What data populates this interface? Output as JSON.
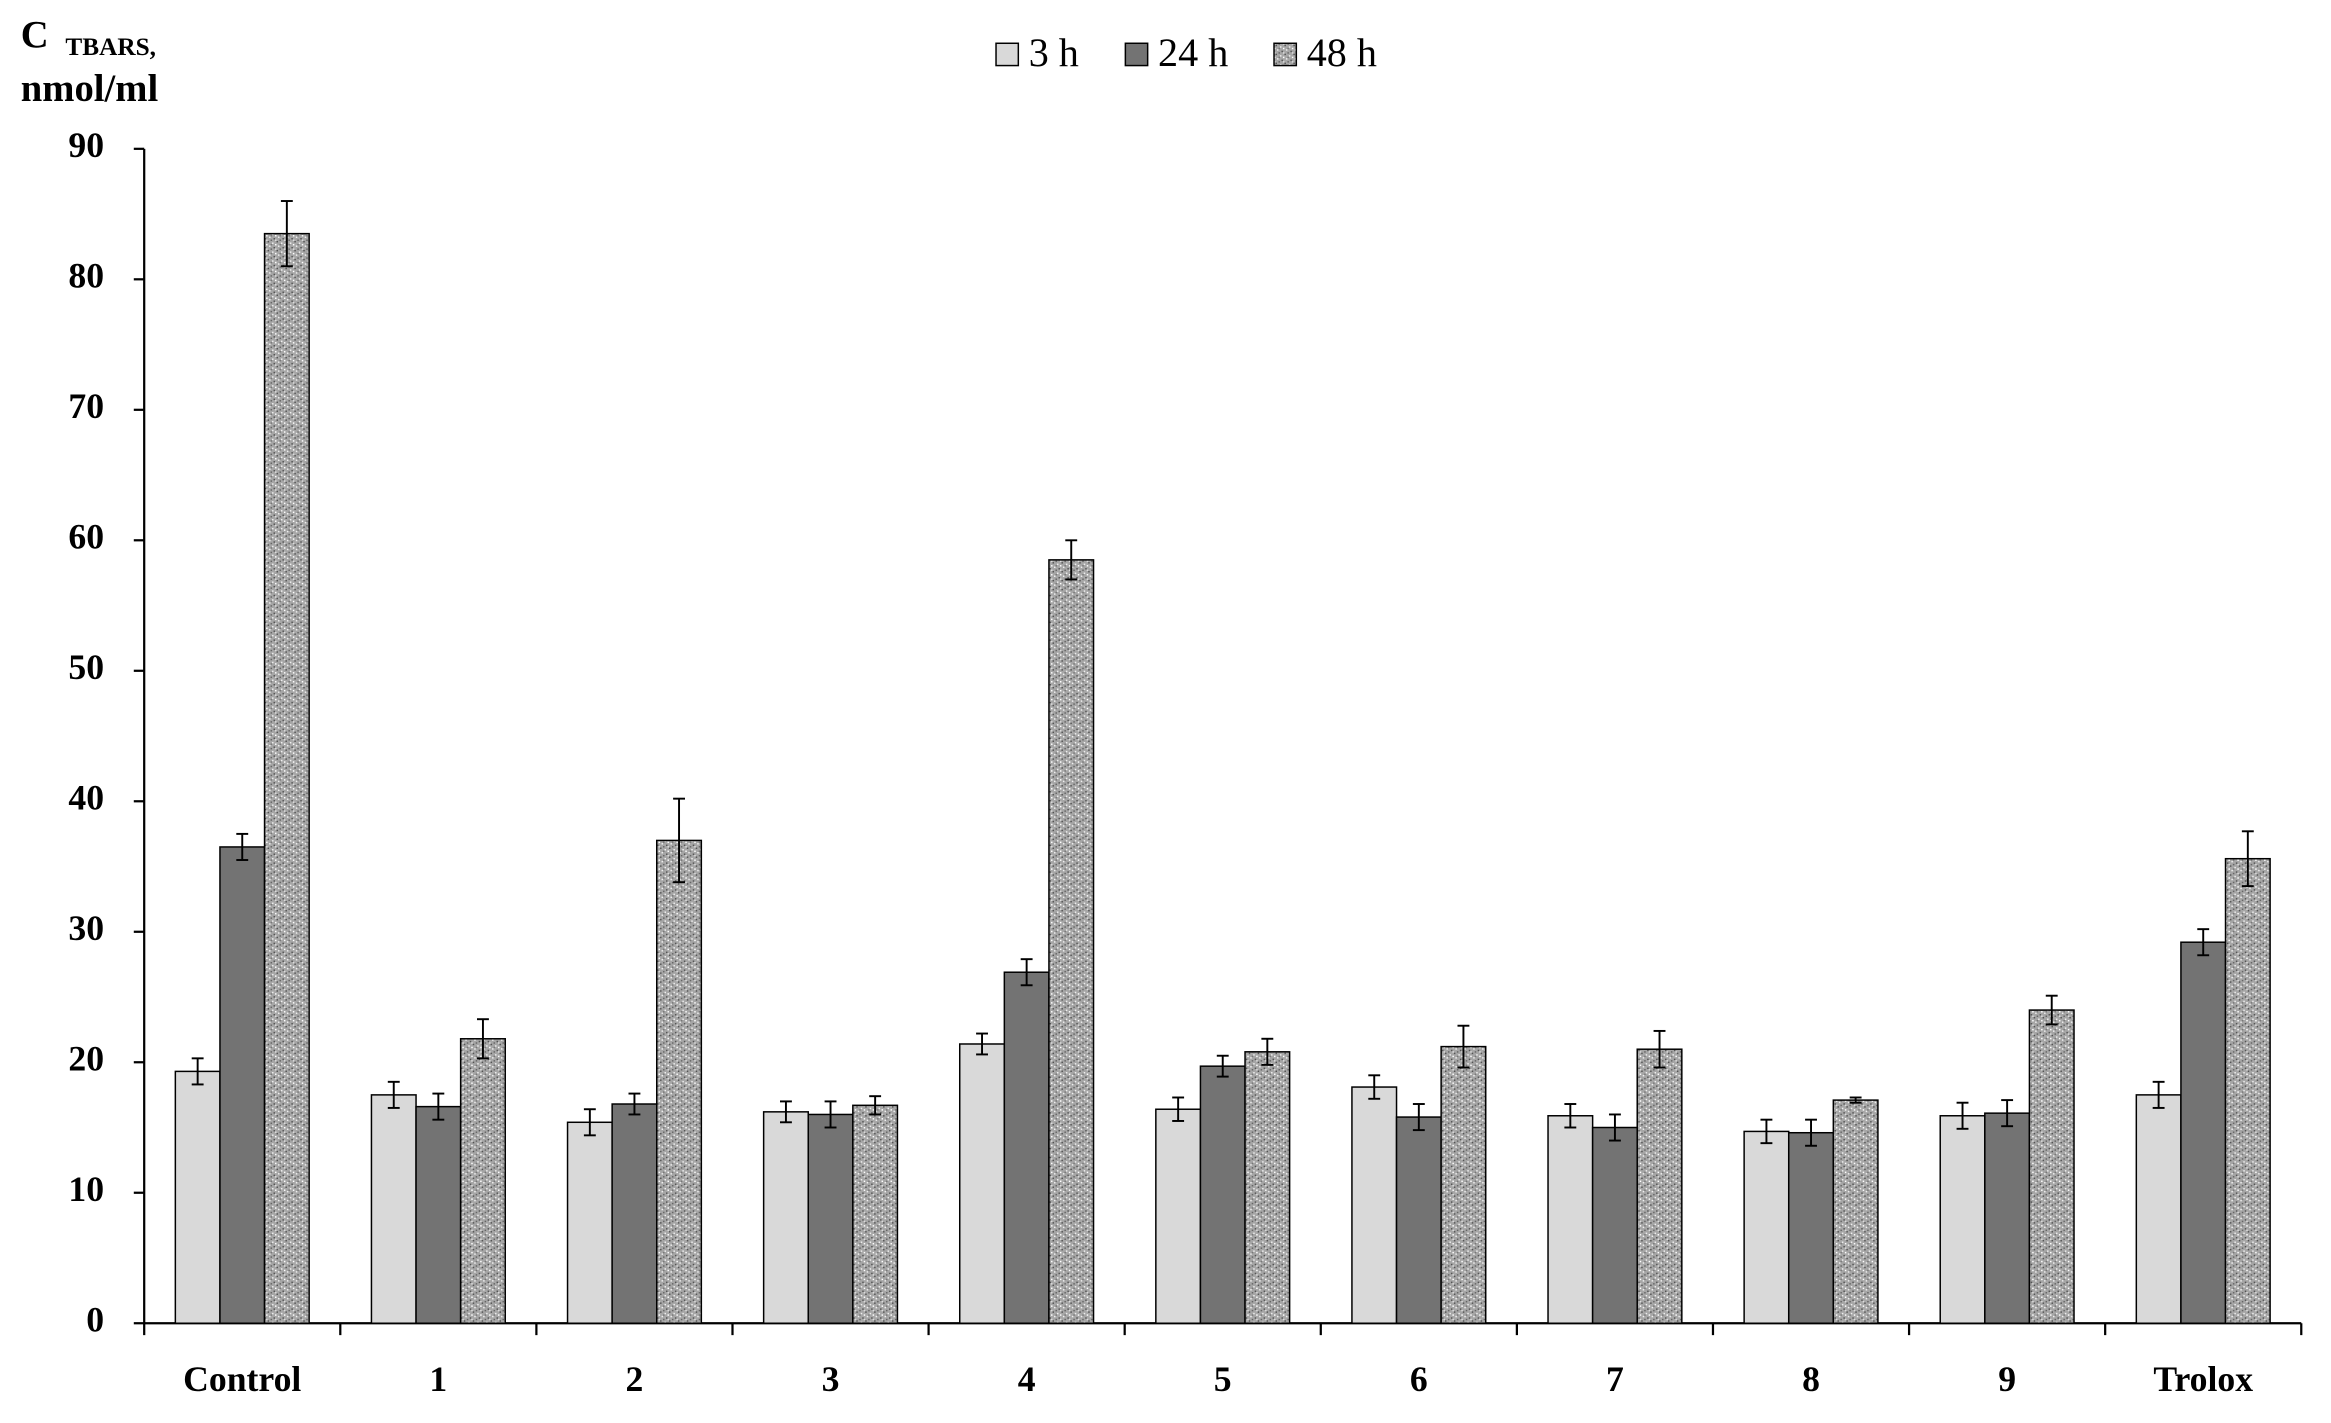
{
  "chart_data": {
    "type": "bar",
    "y_label": {
      "symbol": "C",
      "subscript": "TBARS,",
      "unit": "nmol/ml"
    },
    "categories": [
      "Control",
      "1",
      "2",
      "3",
      "4",
      "5",
      "6",
      "7",
      "8",
      "9",
      "Trolox"
    ],
    "series": [
      {
        "name": "3 h",
        "color": "#d9d9d9",
        "fill_style": "solid",
        "values": [
          19.3,
          17.5,
          15.4,
          16.2,
          21.4,
          16.4,
          18.1,
          15.9,
          14.7,
          15.9,
          17.5
        ],
        "errors": [
          1.0,
          1.0,
          1.0,
          0.8,
          0.8,
          0.9,
          0.9,
          0.9,
          0.9,
          1.0,
          1.0
        ]
      },
      {
        "name": "24 h",
        "color": "#737373",
        "fill_style": "solid",
        "values": [
          36.5,
          16.6,
          16.8,
          16.0,
          26.9,
          19.7,
          15.8,
          15.0,
          14.6,
          16.1,
          29.2
        ],
        "errors": [
          1.0,
          1.0,
          0.8,
          1.0,
          1.0,
          0.8,
          1.0,
          1.0,
          1.0,
          1.0,
          1.0
        ]
      },
      {
        "name": "48 h",
        "color": "#a6a6a6",
        "fill_style": "speckle",
        "values": [
          83.5,
          21.8,
          37.0,
          16.7,
          58.5,
          20.8,
          21.2,
          21.0,
          17.1,
          24.0,
          35.6
        ],
        "errors": [
          2.5,
          1.5,
          3.2,
          0.7,
          1.5,
          1.0,
          1.6,
          1.4,
          0.2,
          1.1,
          2.1
        ]
      }
    ],
    "ylim": [
      0,
      90
    ],
    "yticks": [
      0,
      10,
      20,
      30,
      40,
      50,
      60,
      70,
      80,
      90
    ],
    "grid": false,
    "legend": "top"
  }
}
